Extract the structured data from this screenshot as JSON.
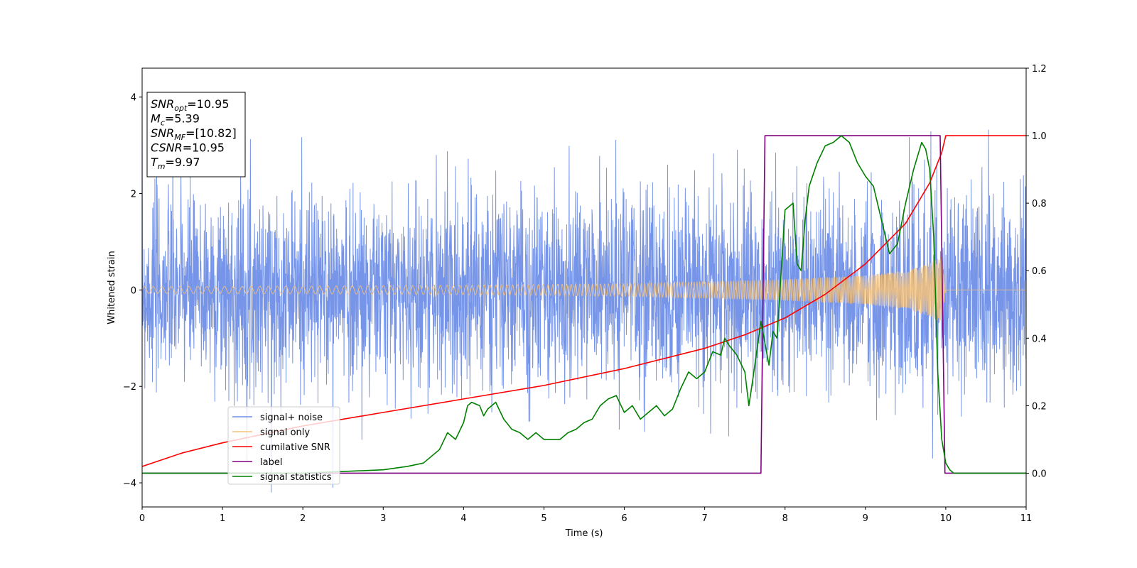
{
  "chart_data": {
    "type": "line",
    "title": "",
    "xlabel": "Time (s)",
    "ylabel": "Whitened strain",
    "xlim": [
      0,
      11
    ],
    "ylim": [
      -4.5,
      4.6
    ],
    "y2lim": [
      -0.1,
      1.2
    ],
    "grid": false,
    "legend_position": "lower-left",
    "x_ticks": [
      "0",
      "1",
      "2",
      "3",
      "4",
      "5",
      "6",
      "7",
      "8",
      "9",
      "10",
      "11"
    ],
    "y_ticks": [
      "−4",
      "−2",
      "0",
      "2",
      "4"
    ],
    "y2_ticks": [
      "0.0",
      "0.2",
      "0.4",
      "0.6",
      "0.8",
      "1.0",
      "1.2"
    ],
    "info_box": [
      {
        "base": "SNR",
        "sub": "opt",
        "value": "=10.95"
      },
      {
        "base": "M",
        "sub": "c",
        "value": "=5.39"
      },
      {
        "base": "SNR",
        "sub": "MF",
        "value": "=[10.82]"
      },
      {
        "base": "CSNR",
        "sub": "",
        "value": "=10.95"
      },
      {
        "base": "T",
        "sub": "m",
        "value": "=9.97"
      }
    ],
    "series": [
      {
        "name": "signal+ noise",
        "color": "#6b8ce6",
        "axis": "left",
        "noise_sigma": 1.0,
        "x_range": [
          0,
          11
        ]
      },
      {
        "name": "signal only",
        "color": "#f5c27a",
        "axis": "left",
        "envelope": {
          "x": [
            0,
            2,
            4,
            6,
            7,
            8,
            9,
            9.5,
            9.8,
            9.95,
            10.0
          ],
          "amp": [
            0.07,
            0.08,
            0.1,
            0.13,
            0.17,
            0.22,
            0.3,
            0.4,
            0.55,
            0.7,
            0.0
          ]
        }
      },
      {
        "name": "cumilative SNR",
        "color": "#ff0000",
        "axis": "right",
        "x": [
          0,
          0.5,
          1,
          2,
          3,
          4,
          5,
          6,
          7,
          7.5,
          8,
          8.5,
          9,
          9.5,
          9.8,
          9.95,
          10.0,
          11
        ],
        "values": [
          0.02,
          0.06,
          0.09,
          0.14,
          0.18,
          0.22,
          0.26,
          0.31,
          0.37,
          0.41,
          0.46,
          0.53,
          0.62,
          0.74,
          0.86,
          0.95,
          1.0,
          1.0
        ]
      },
      {
        "name": "label",
        "color": "#800080",
        "axis": "right",
        "x": [
          0,
          7.7,
          7.75,
          9.93,
          9.99,
          11
        ],
        "values": [
          0,
          0,
          1,
          1,
          0,
          0
        ]
      },
      {
        "name": "signal statistics",
        "color": "#008000",
        "axis": "right",
        "x": [
          0,
          1,
          2,
          2.5,
          3,
          3.3,
          3.5,
          3.7,
          3.8,
          3.9,
          4.0,
          4.05,
          4.1,
          4.2,
          4.25,
          4.3,
          4.4,
          4.5,
          4.6,
          4.7,
          4.8,
          4.9,
          5.0,
          5.2,
          5.3,
          5.4,
          5.5,
          5.6,
          5.7,
          5.8,
          5.9,
          6.0,
          6.1,
          6.2,
          6.3,
          6.4,
          6.5,
          6.6,
          6.7,
          6.8,
          6.9,
          7.0,
          7.1,
          7.2,
          7.25,
          7.3,
          7.4,
          7.5,
          7.55,
          7.6,
          7.7,
          7.8,
          7.85,
          7.9,
          8.0,
          8.1,
          8.15,
          8.2,
          8.25,
          8.3,
          8.4,
          8.5,
          8.6,
          8.7,
          8.8,
          8.9,
          9.0,
          9.1,
          9.2,
          9.3,
          9.4,
          9.5,
          9.6,
          9.7,
          9.75,
          9.8,
          9.85,
          9.9,
          9.95,
          10.0,
          10.05,
          10.1,
          10.5,
          11
        ],
        "values": [
          0.0,
          0.0,
          0.0,
          0.005,
          0.01,
          0.02,
          0.03,
          0.07,
          0.12,
          0.1,
          0.15,
          0.2,
          0.21,
          0.2,
          0.17,
          0.19,
          0.21,
          0.16,
          0.13,
          0.12,
          0.1,
          0.12,
          0.1,
          0.1,
          0.12,
          0.13,
          0.15,
          0.16,
          0.2,
          0.22,
          0.23,
          0.18,
          0.2,
          0.16,
          0.18,
          0.2,
          0.17,
          0.19,
          0.25,
          0.3,
          0.28,
          0.3,
          0.36,
          0.35,
          0.4,
          0.38,
          0.35,
          0.3,
          0.2,
          0.28,
          0.45,
          0.32,
          0.42,
          0.4,
          0.78,
          0.8,
          0.62,
          0.6,
          0.75,
          0.85,
          0.92,
          0.97,
          0.98,
          1.0,
          0.98,
          0.92,
          0.88,
          0.85,
          0.75,
          0.65,
          0.68,
          0.8,
          0.9,
          0.98,
          0.96,
          0.9,
          0.7,
          0.3,
          0.1,
          0.03,
          0.01,
          0.0,
          0.0,
          0.0
        ]
      }
    ]
  }
}
